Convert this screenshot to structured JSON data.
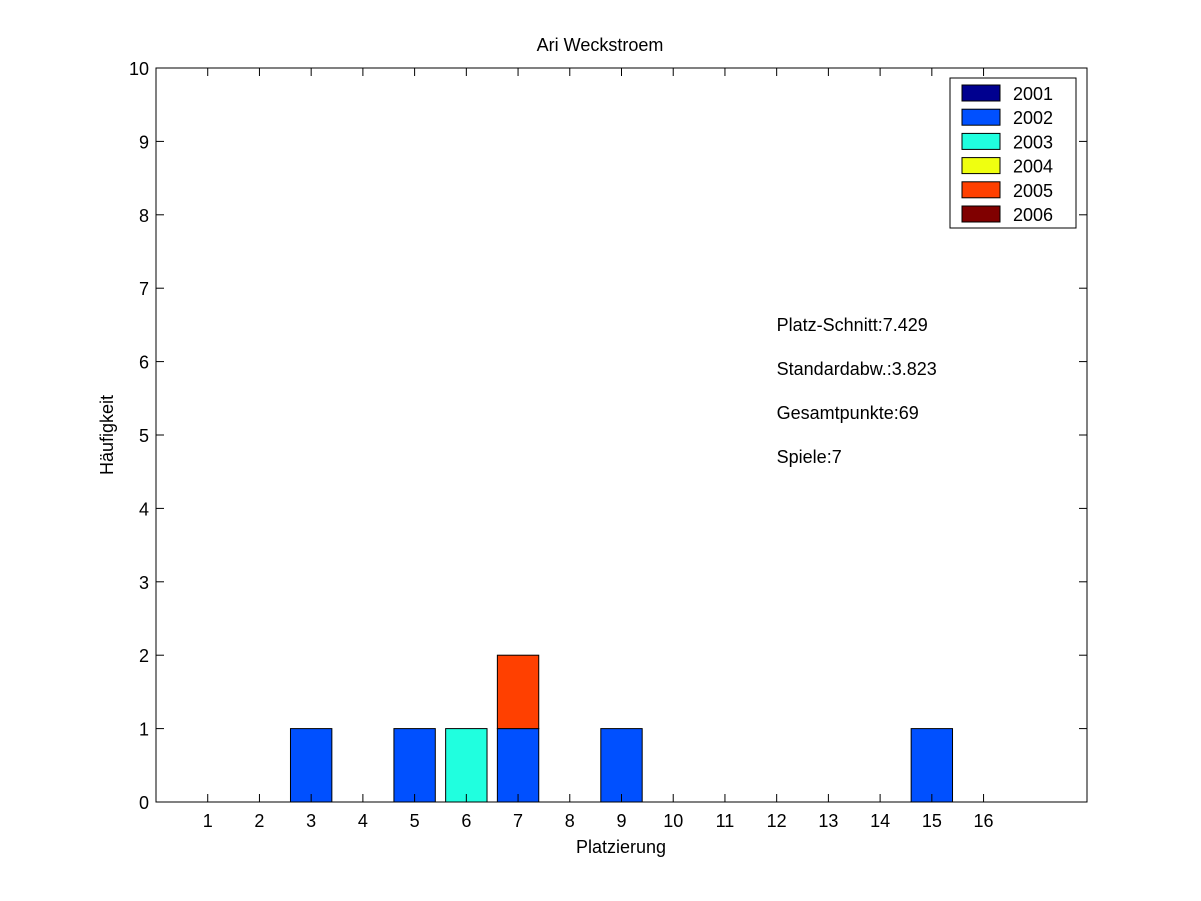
{
  "chart_data": {
    "type": "bar",
    "stacked": true,
    "title": "Ari Weckstroem",
    "xlabel": "Platzierung",
    "ylabel": "Häufigkeit",
    "xlim": [
      0,
      18
    ],
    "ylim": [
      0,
      10
    ],
    "x_ticks": [
      1,
      2,
      3,
      4,
      5,
      6,
      7,
      8,
      9,
      10,
      11,
      12,
      13,
      14,
      15,
      16
    ],
    "y_ticks": [
      0,
      1,
      2,
      3,
      4,
      5,
      6,
      7,
      8,
      9,
      10
    ],
    "grid": false,
    "legend_position": "top-right",
    "series": [
      {
        "name": "2001",
        "color": "#00008f",
        "values": [
          0,
          0,
          0,
          0,
          0,
          0,
          0,
          0,
          0,
          0,
          0,
          0,
          0,
          0,
          0,
          0
        ]
      },
      {
        "name": "2002",
        "color": "#0050ff",
        "values": [
          0,
          0,
          1,
          0,
          1,
          0,
          1,
          0,
          1,
          0,
          0,
          0,
          0,
          0,
          1,
          0
        ]
      },
      {
        "name": "2003",
        "color": "#20ffdf",
        "values": [
          0,
          0,
          0,
          0,
          0,
          1,
          0,
          0,
          0,
          0,
          0,
          0,
          0,
          0,
          0,
          0
        ]
      },
      {
        "name": "2004",
        "color": "#efff10",
        "values": [
          0,
          0,
          0,
          0,
          0,
          0,
          0,
          0,
          0,
          0,
          0,
          0,
          0,
          0,
          0,
          0
        ]
      },
      {
        "name": "2005",
        "color": "#ff4000",
        "values": [
          0,
          0,
          0,
          0,
          0,
          0,
          1,
          0,
          0,
          0,
          0,
          0,
          0,
          0,
          0,
          0
        ]
      },
      {
        "name": "2006",
        "color": "#800000",
        "values": [
          0,
          0,
          0,
          0,
          0,
          0,
          0,
          0,
          0,
          0,
          0,
          0,
          0,
          0,
          0,
          0
        ]
      }
    ],
    "annotations": [
      "Platz-Schnitt:7.429",
      "Standardabw.:3.823",
      "Gesamtpunkte:69",
      "Spiele:7"
    ]
  }
}
